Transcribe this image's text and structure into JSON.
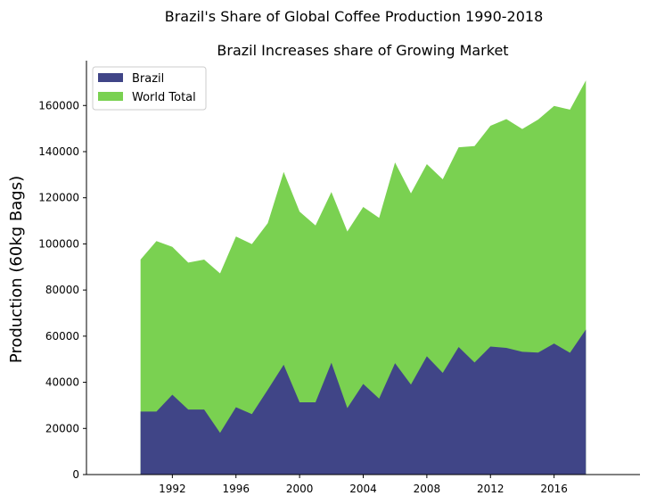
{
  "figure": {
    "suptitle": "Brazil's Share of Global Coffee Production 1990-2018"
  },
  "chart_data": {
    "type": "area",
    "title": "Brazil Increases share of Growing Market",
    "xlabel": "",
    "ylabel": "Production (60kg Bags)",
    "x": [
      1990,
      1991,
      1992,
      1993,
      1994,
      1995,
      1996,
      1997,
      1998,
      1999,
      2000,
      2001,
      2002,
      2003,
      2004,
      2005,
      2006,
      2007,
      2008,
      2009,
      2010,
      2011,
      2012,
      2013,
      2014,
      2015,
      2016,
      2017,
      2018
    ],
    "series": [
      {
        "name": "Brazil",
        "color": "#404587",
        "values": [
          27300,
          27300,
          34600,
          28200,
          28200,
          18100,
          29200,
          26200,
          36800,
          47600,
          31300,
          31300,
          48500,
          28800,
          39300,
          32900,
          48300,
          39000,
          51300,
          44100,
          55300,
          48600,
          55500,
          54900,
          53200,
          52900,
          56800,
          52800,
          62900
        ]
      },
      {
        "name": "World Total",
        "color": "#7ad151",
        "values": [
          93200,
          101200,
          98700,
          91900,
          93200,
          87200,
          103200,
          99900,
          109000,
          131200,
          114000,
          108000,
          122500,
          105400,
          116000,
          111300,
          135300,
          121900,
          134600,
          128000,
          141900,
          142400,
          151200,
          154100,
          149800,
          153900,
          159800,
          158200,
          170900
        ]
      }
    ],
    "xticks": [
      1992,
      1996,
      2000,
      2004,
      2008,
      2012,
      2016
    ],
    "yticks": [
      0,
      20000,
      40000,
      60000,
      80000,
      100000,
      120000,
      140000,
      160000
    ],
    "xlim": [
      1986.6,
      2021.4
    ],
    "ylim": [
      0,
      179440
    ],
    "grid": false,
    "legend": "top-left"
  }
}
